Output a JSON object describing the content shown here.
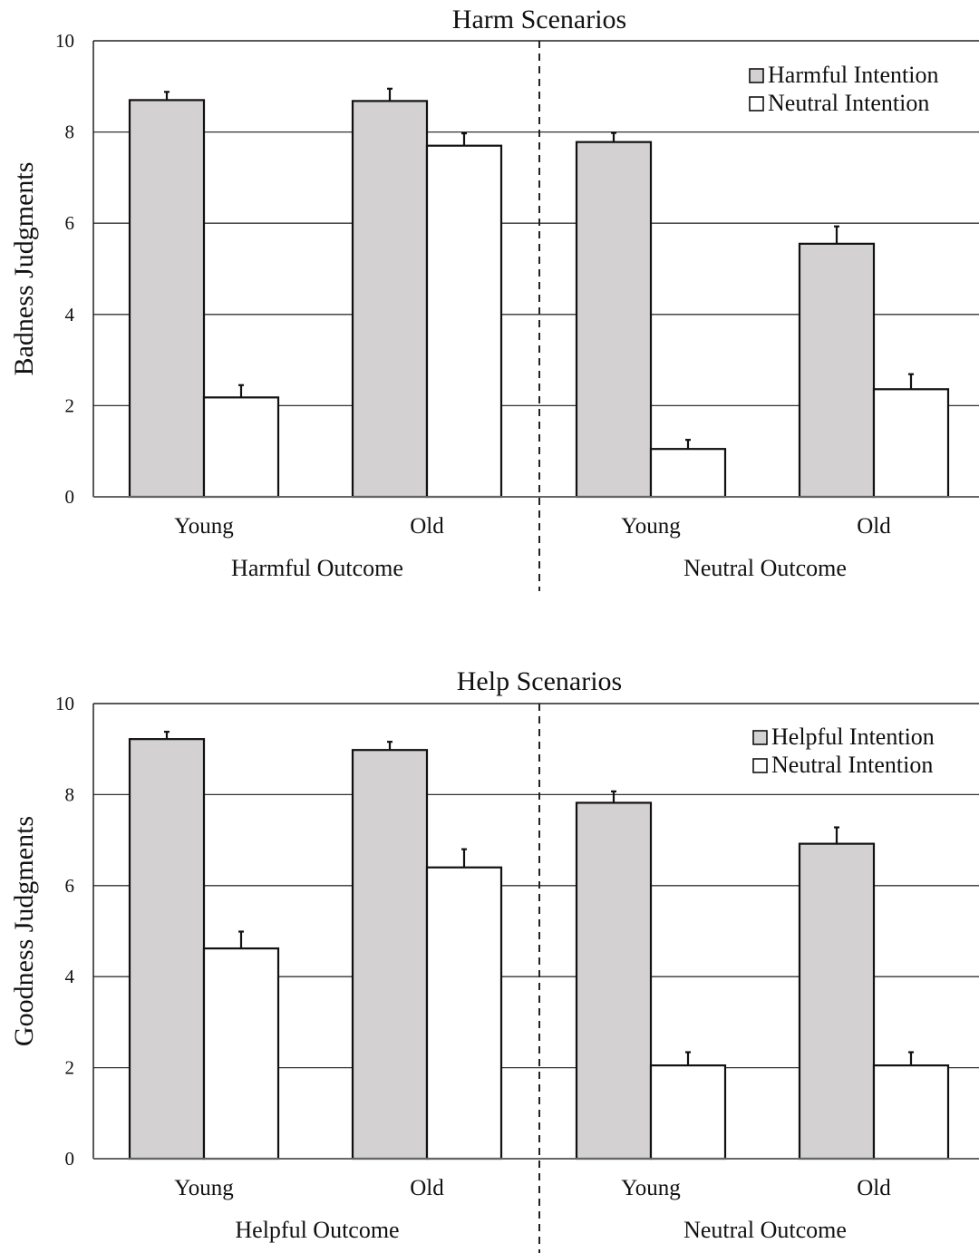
{
  "chart_data": [
    {
      "type": "bar",
      "title": "Harm Scenarios",
      "ylabel": "Badness Judgments",
      "ylim": [
        0,
        10
      ],
      "yticks": [
        "0",
        "2",
        "4",
        "6",
        "8",
        "10"
      ],
      "grid": true,
      "legend_position": "top-right",
      "groups": [
        {
          "label": "Harmful Outcome",
          "categories": [
            "Young",
            "Old"
          ]
        },
        {
          "label": "Neutral Outcome",
          "categories": [
            "Young",
            "Old"
          ]
        }
      ],
      "series": [
        {
          "name": "Harmful Intention",
          "color": "#d3d1d2",
          "values": [
            8.7,
            8.68,
            7.78,
            5.55
          ],
          "errors": [
            0.18,
            0.27,
            0.2,
            0.38
          ]
        },
        {
          "name": "Neutral Intention",
          "color": "#ffffff",
          "values": [
            2.18,
            7.7,
            1.05,
            2.36
          ],
          "errors": [
            0.27,
            0.27,
            0.2,
            0.33
          ]
        }
      ]
    },
    {
      "type": "bar",
      "title": "Help Scenarios",
      "ylabel": "Goodness Judgments",
      "ylim": [
        0,
        10
      ],
      "yticks": [
        "0",
        "2",
        "4",
        "6",
        "8",
        "10"
      ],
      "grid": true,
      "legend_position": "top-right",
      "groups": [
        {
          "label": "Helpful Outcome",
          "categories": [
            "Young",
            "Old"
          ]
        },
        {
          "label": "Neutral Outcome",
          "categories": [
            "Young",
            "Old"
          ]
        }
      ],
      "series": [
        {
          "name": "Helpful Intention",
          "color": "#d3d1d2",
          "values": [
            9.22,
            8.98,
            7.82,
            6.92
          ],
          "errors": [
            0.16,
            0.18,
            0.25,
            0.36
          ]
        },
        {
          "name": "Neutral Intention",
          "color": "#ffffff",
          "values": [
            4.62,
            6.4,
            2.05,
            2.05
          ],
          "errors": [
            0.37,
            0.4,
            0.29,
            0.29
          ]
        }
      ]
    }
  ]
}
